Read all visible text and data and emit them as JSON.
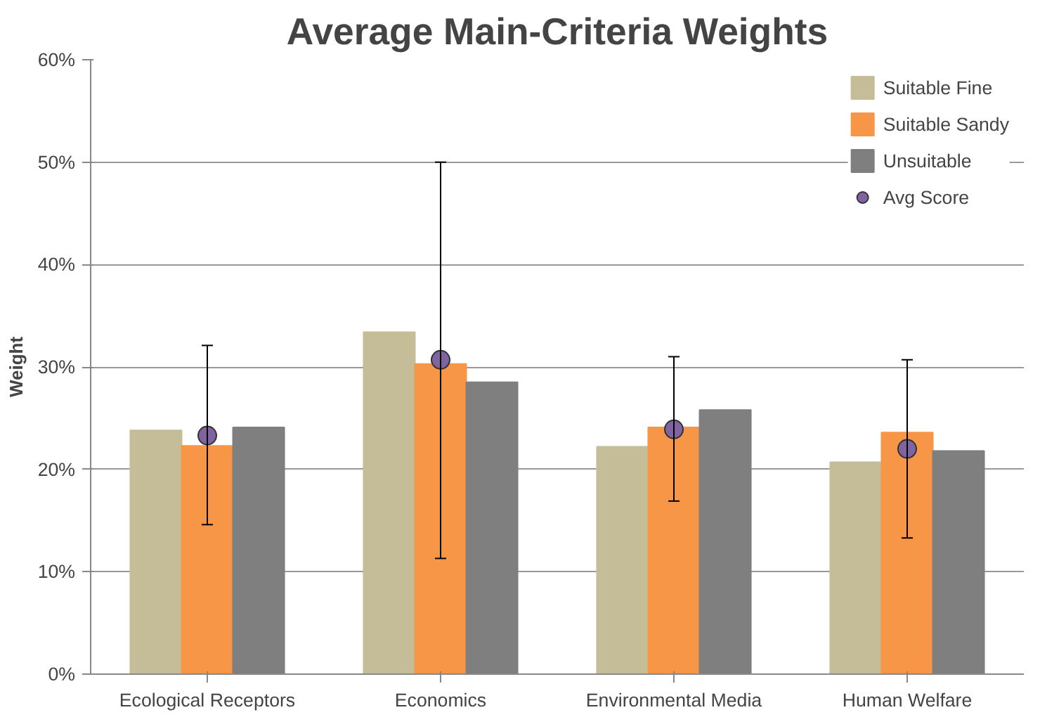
{
  "chart_data": {
    "type": "bar",
    "title": "Average Main-Criteria Weights",
    "ylabel": "Weight",
    "categories": [
      "Ecological Receptors",
      "Economics",
      "Environmental Media",
      "Human Welfare"
    ],
    "series": [
      {
        "name": "Suitable Fine",
        "color": "#c4bd97",
        "values": [
          23.8,
          33.4,
          22.2,
          20.7
        ]
      },
      {
        "name": "Suitable Sandy",
        "color": "#f79646",
        "values": [
          22.3,
          30.3,
          24.1,
          23.6
        ]
      },
      {
        "name": "Unsuitable",
        "color": "#7f7f7f",
        "values": [
          24.1,
          28.5,
          25.8,
          21.8
        ]
      },
      {
        "name": "Avg Score",
        "type": "scatter",
        "color": "#8064a2",
        "x": [
          "Ecological Receptors",
          "Economics",
          "Environmental Media",
          "Human Welfare"
        ],
        "values": [
          23.3,
          30.7,
          23.9,
          22.0
        ],
        "errors": [
          [
            14.6,
            32.1
          ],
          [
            11.3,
            50.0
          ],
          [
            16.9,
            31.0
          ],
          [
            13.3,
            30.7
          ]
        ]
      }
    ],
    "ylim": [
      0,
      60
    ],
    "yticks": [
      {
        "value": 0,
        "label": "0%"
      },
      {
        "value": 10,
        "label": "10%"
      },
      {
        "value": 20,
        "label": "20%"
      },
      {
        "value": 30,
        "label": "30%"
      },
      {
        "value": 40,
        "label": "40%"
      },
      {
        "value": 50,
        "label": "50%"
      },
      {
        "value": 60,
        "label": "60%"
      }
    ],
    "grid": "y",
    "legend": "top right",
    "marker": "circle"
  }
}
